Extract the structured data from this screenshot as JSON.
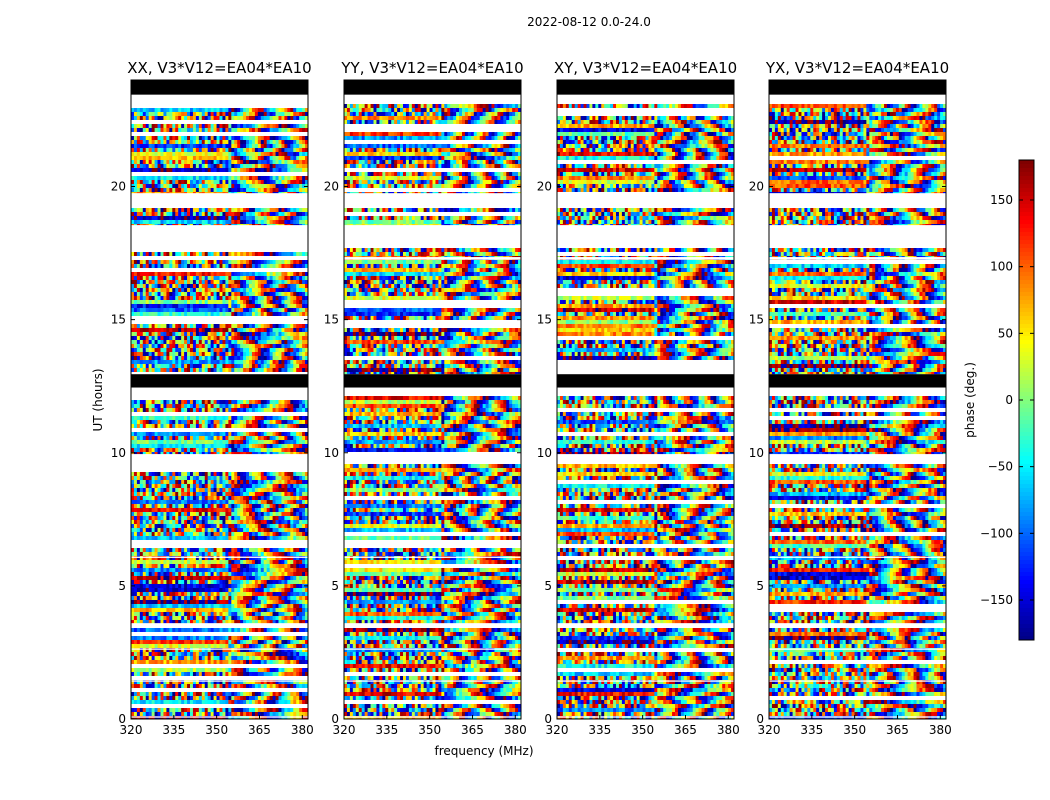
{
  "chart_data": {
    "type": "heatmap",
    "suptitle": "2022-08-12 0.0-24.0",
    "xlabel": "frequency (MHz)",
    "ylabel": "UT (hours)",
    "xlim": [
      320,
      382
    ],
    "ylim": [
      0,
      24
    ],
    "xticks": [
      320,
      335,
      350,
      365,
      380
    ],
    "yticks": [
      0,
      5,
      10,
      15,
      20
    ],
    "colorbar": {
      "label": "phase (deg.)",
      "range": [
        -180,
        180
      ],
      "ticks": [
        150,
        100,
        50,
        0,
        -50,
        -100,
        -150
      ],
      "tick_labels": [
        "150",
        "100",
        "50",
        "0",
        "−50",
        "−100",
        "−150"
      ],
      "colormap": [
        "#00007f",
        "#0000ff",
        "#007fff",
        "#00ffff",
        "#7fff7f",
        "#ffff00",
        "#ff7f00",
        "#ff0000",
        "#7f0000"
      ]
    },
    "panels": [
      {
        "title": "XX, V3*V12=EA04*EA10",
        "pol": "XX",
        "seed": 11
      },
      {
        "title": "YY, V3*V12=EA04*EA10",
        "pol": "YY",
        "seed": 23
      },
      {
        "title": "XY, V3*V12=EA04*EA10",
        "pol": "XY",
        "seed": 37
      },
      {
        "title": "YX, V3*V12=EA04*EA10",
        "pol": "YX",
        "seed": 53
      }
    ],
    "gaps_hours": [
      [
        0.05,
        0.1
      ],
      [
        1.4,
        1.45
      ],
      [
        2.6,
        2.65
      ],
      [
        3.55,
        3.6
      ],
      [
        6.05,
        6.1
      ],
      [
        9.65,
        9.95
      ],
      [
        12.25,
        12.45
      ],
      [
        12.45,
        12.95
      ],
      [
        17.25,
        17.35
      ],
      [
        17.75,
        18.55
      ],
      [
        19.25,
        19.75
      ],
      [
        23.1,
        23.45
      ],
      [
        23.45,
        24.0
      ]
    ],
    "masked_bands": [
      [
        12.45,
        12.95
      ],
      [
        23.45,
        24.0
      ]
    ]
  }
}
